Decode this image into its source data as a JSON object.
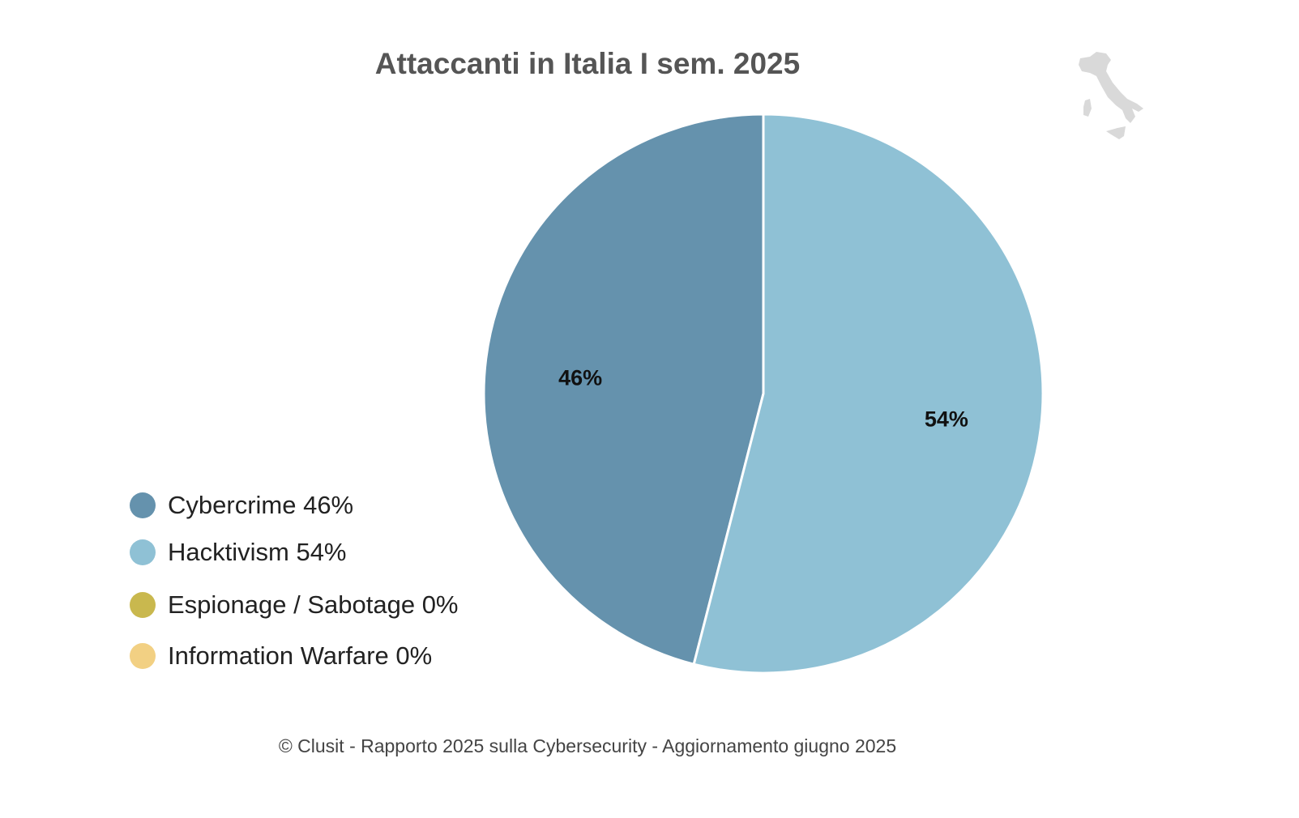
{
  "chart_data": {
    "type": "pie",
    "title": "Attaccanti in Italia I sem. 2025",
    "slices": [
      {
        "name": "Cybercrime",
        "value": 46,
        "label": "46%",
        "legend": "Cybercrime 46%",
        "color": "#6592ad"
      },
      {
        "name": "Hacktivism",
        "value": 54,
        "label": "54%",
        "legend": "Hacktivism 54%",
        "color": "#8fc1d5"
      },
      {
        "name": "Espionage / Sabotage",
        "value": 0,
        "label": "0%",
        "legend": "Espionage / Sabotage 0%",
        "color": "#c9b84e"
      },
      {
        "name": "Information Warfare",
        "value": 0,
        "label": "0%",
        "legend": "Information Warfare 0%",
        "color": "#f2d083"
      }
    ],
    "legend_position": "bottom-left"
  },
  "footer": "© Clusit - Rapporto 2025 sulla Cybersecurity - Aggiornamento giugno 2025",
  "logo_icon": "italy-map-icon"
}
